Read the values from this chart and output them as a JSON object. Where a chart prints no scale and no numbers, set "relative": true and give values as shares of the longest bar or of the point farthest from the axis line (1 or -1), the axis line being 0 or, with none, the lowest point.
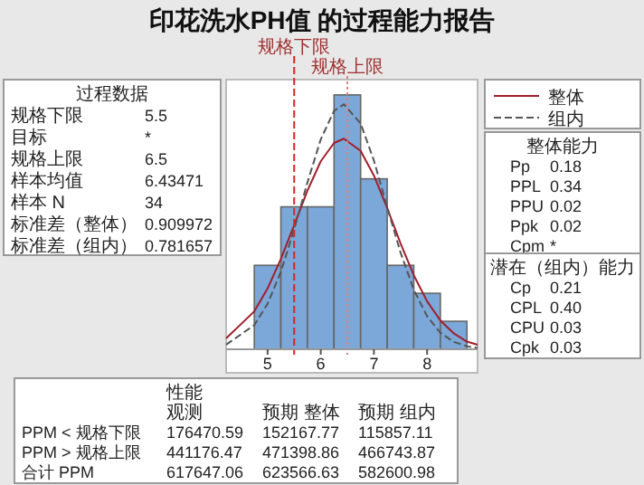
{
  "chart_data": [
    {
      "type": "histogram",
      "title": "印花洗水PH值 的过程能力报告",
      "relative": true,
      "bins": [
        4.75,
        5.25,
        5.75,
        6.25,
        6.75,
        7.25,
        7.75,
        8.25,
        8.75
      ],
      "values": [
        0.33,
        0.56,
        0.56,
        1,
        0.67,
        0.33,
        0.22,
        0.11
      ],
      "color": "#7ba7d9",
      "xlim": [
        4.22,
        8.95
      ],
      "xticks": [
        5,
        6,
        7,
        8
      ],
      "legend": "top right",
      "ref_lines": [
        {
          "axis": "x",
          "value": 5.5,
          "label": "规格下限",
          "color": "#d62728",
          "line_style": "dashed"
        },
        {
          "axis": "x",
          "value": 6.5,
          "label": "规格上限",
          "color": "#e08080",
          "line_style": "dotted"
        }
      ],
      "series": [
        {
          "name": "整体",
          "type": "line",
          "color": "#a01e2b",
          "line_style": "solid",
          "x": [
            4.22,
            4.75,
            5.0,
            5.25,
            5.5,
            5.75,
            6.0,
            6.25,
            6.435,
            6.75,
            7.0,
            7.25,
            7.5,
            7.75,
            8.0,
            8.25,
            8.5,
            8.75,
            8.95
          ],
          "values": [
            0.043,
            0.149,
            0.239,
            0.355,
            0.488,
            0.624,
            0.739,
            0.811,
            0.828,
            0.78,
            0.683,
            0.555,
            0.417,
            0.291,
            0.189,
            0.113,
            0.063,
            0.03,
            0.018
          ]
        },
        {
          "name": "组内",
          "type": "line",
          "color": "#555555",
          "line_style": "dashed",
          "x": [
            4.22,
            4.75,
            5.0,
            5.25,
            5.5,
            5.75,
            6.0,
            6.25,
            6.435,
            6.75,
            7.0,
            7.25,
            7.5,
            7.75,
            8.0,
            8.25,
            8.5,
            8.75,
            8.95
          ],
          "values": [
            0.018,
            0.095,
            0.179,
            0.305,
            0.471,
            0.656,
            0.825,
            0.937,
            0.963,
            0.888,
            0.742,
            0.559,
            0.381,
            0.234,
            0.13,
            0.065,
            0.029,
            0.012,
            0.005
          ]
        }
      ]
    },
    {
      "type": "other",
      "title": "过程数据",
      "categories": [
        "规格下限",
        "目标",
        "规格上限",
        "样本均值",
        "样本 N",
        "标准差（整体）",
        "标准差（组内）"
      ],
      "value_labels": [
        "5.5",
        "*",
        "6.5",
        "6.43471",
        "34",
        "0.909972",
        "0.781657"
      ]
    },
    {
      "type": "other",
      "title": "整体能力",
      "categories": [
        "Pp",
        "PPL",
        "PPU",
        "Ppk",
        "Cpm"
      ],
      "value_labels": [
        "0.18",
        "0.34",
        "0.02",
        "0.02",
        "*"
      ]
    },
    {
      "type": "other",
      "title": "潜在（组内）能力",
      "categories": [
        "Cp",
        "CPL",
        "CPU",
        "Cpk"
      ],
      "value_labels": [
        "0.21",
        "0.40",
        "0.03",
        "0.03"
      ]
    },
    {
      "type": "other",
      "title": "性能",
      "categories": [
        "PPM < 规格下限",
        "PPM > 规格上限",
        "合计 PPM"
      ],
      "data_labels": true,
      "series": [
        {
          "name": "观测",
          "values": [
            176470.59,
            441176.47,
            617647.06
          ]
        },
        {
          "name": "预期 整体",
          "values": [
            152167.77,
            471398.86,
            623566.63
          ]
        },
        {
          "name": "预期 组内",
          "values": [
            115857.11,
            466743.87,
            582600.98
          ]
        }
      ]
    }
  ]
}
